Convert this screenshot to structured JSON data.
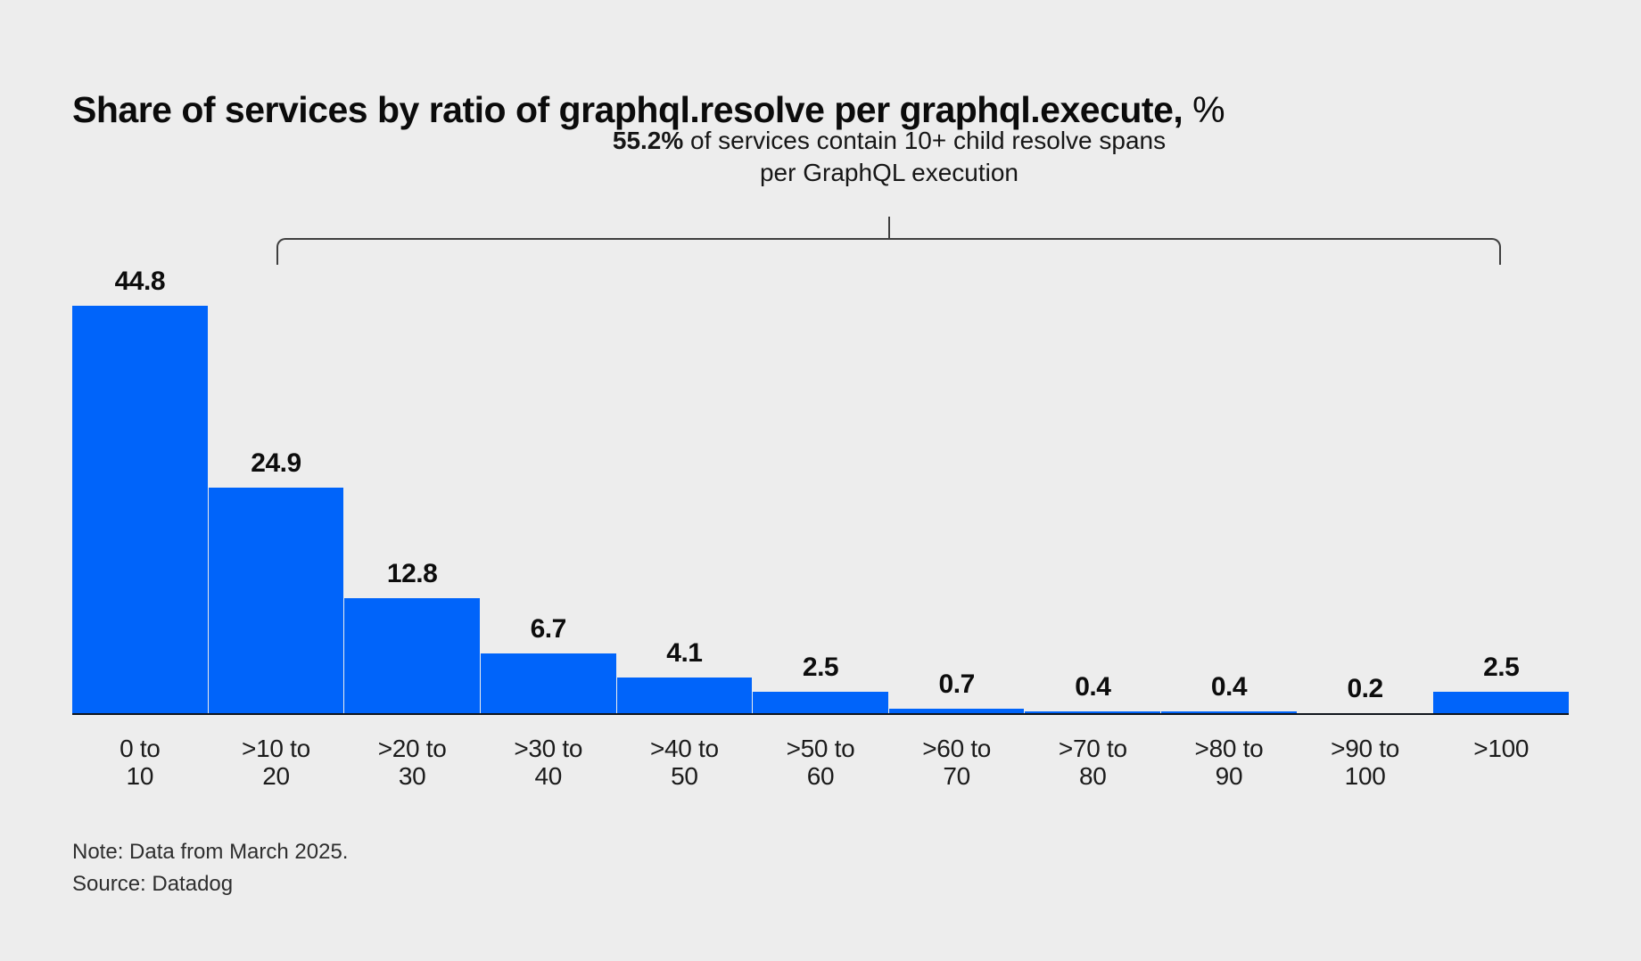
{
  "title": {
    "main": "Share of services by ratio of graphql.resolve per graphql.execute,",
    "suffix": " %"
  },
  "annotation": {
    "highlight": "55.2%",
    "line1_rest": " of services contain 10+ child resolve spans",
    "line2": "per GraphQL execution"
  },
  "chart_data": {
    "type": "bar",
    "title": "Share of services by ratio of graphql.resolve per graphql.execute, %",
    "unit": "%",
    "categories": [
      "0 to 10",
      ">10 to 20",
      ">20 to 30",
      ">30 to 40",
      ">40 to 50",
      ">50 to 60",
      ">60 to 70",
      ">70 to 80",
      ">80 to 90",
      ">90 to 100",
      ">100"
    ],
    "category_label_lines": [
      [
        "0 to",
        "10"
      ],
      [
        ">10 to",
        "20"
      ],
      [
        ">20 to",
        "30"
      ],
      [
        ">30 to",
        "40"
      ],
      [
        ">40 to",
        "50"
      ],
      [
        ">50 to",
        "60"
      ],
      [
        ">60 to",
        "70"
      ],
      [
        ">70 to",
        "80"
      ],
      [
        ">80 to",
        "90"
      ],
      [
        ">90 to",
        "100"
      ],
      [
        ">100"
      ]
    ],
    "values": [
      44.8,
      24.9,
      12.8,
      6.7,
      4.1,
      2.5,
      0.7,
      0.4,
      0.4,
      0.2,
      2.5
    ],
    "value_labels_shown": true,
    "ylim": [
      0,
      48
    ],
    "grid": false,
    "legend": false,
    "bar_color": "#0064fa",
    "annotation_text": "55.2% of services contain 10+ child resolve spans per GraphQL execution",
    "annotation_span_categories": [
      ">10 to 20",
      ">100"
    ]
  },
  "footer": {
    "note": "Note: Data from March 2025.",
    "source": "Source: Datadog"
  },
  "colors": {
    "background": "#ededed",
    "bar": "#0064fa",
    "axis_line": "#10151c",
    "bracket_line": "#3f3f3f",
    "text": "#0d0d0d"
  }
}
